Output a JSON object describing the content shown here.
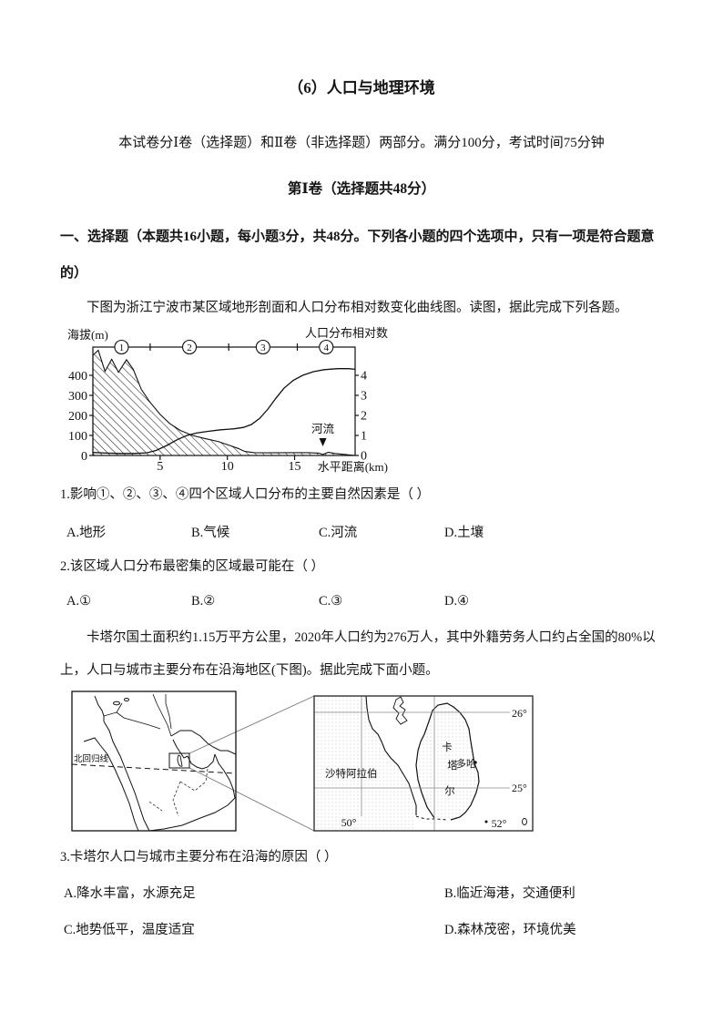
{
  "page": {
    "title": "（6）人口与地理环境",
    "exam_info": "本试卷分Ⅰ卷（选择题）和Ⅱ卷（非选择题）两部分。满分100分，考试时间75分钟",
    "part1_heading": "第Ⅰ卷（选择题共48分）",
    "section_heading": "一、选择题（本题共16小题，每小题3分，共48分。下列各小题的四个选项中，只有一项是符合题意的）",
    "intro1": "下图为浙江宁波市某区域地形剖面和人口分布相对数变化曲线图。读图，据此完成下列各题。",
    "intro2": "卡塔尔国土面积约1.15万平方公里，2020年人口约为276万人，其中外籍劳务人口约占全国的80%以上，人口与城市主要分布在沿海地区(下图)。据此完成下面小题。"
  },
  "questions": [
    {
      "text": "1.影响①、②、③、④四个区域人口分布的主要自然因素是（  ）",
      "options": [
        "A.地形",
        "B.气候",
        "C.河流",
        "D.土壤"
      ]
    },
    {
      "text": "2.该区域人口分布最密集的区域最可能在（  ）",
      "options": [
        "A.①",
        "B.②",
        "C.③",
        "D.④"
      ]
    },
    {
      "text": "3.卡塔尔人口与城市主要分布在沿海的原因（  ）",
      "options": [
        "A.降水丰富，水源充足",
        "B.临近海港，交通便利",
        "C.地势低平，温度适宜",
        "D.森林茂密，环境优美"
      ]
    }
  ],
  "chart_data": {
    "type": "line",
    "left_axis": {
      "label": "海拔(m)",
      "ticks": [
        0,
        100,
        200,
        300,
        400
      ],
      "max": 541
    },
    "right_axis": {
      "label": "人口分布相对数",
      "ticks": [
        0,
        1,
        2,
        3,
        4
      ]
    },
    "x_axis": {
      "label": "水平距离(km)",
      "ticks": [
        5,
        10,
        15
      ],
      "max": 19.5
    },
    "regions": {
      "labels": [
        "1",
        "2",
        "3",
        "4"
      ],
      "boundaries_km": [
        4.26,
        10.1,
        15.2
      ]
    },
    "annotation": {
      "label": "河流",
      "x_km": 17.1
    },
    "terrain_profile_m": [
      [
        0,
        500
      ],
      [
        0.4,
        525
      ],
      [
        0.9,
        420
      ],
      [
        1.4,
        480
      ],
      [
        1.9,
        415
      ],
      [
        2.5,
        478
      ],
      [
        3,
        430
      ],
      [
        3.6,
        330
      ],
      [
        4.2,
        270
      ],
      [
        5,
        205
      ],
      [
        5.7,
        160
      ],
      [
        6.5,
        125
      ],
      [
        7.4,
        100
      ],
      [
        8.3,
        85
      ],
      [
        9.3,
        70
      ],
      [
        10.1,
        52
      ],
      [
        10.8,
        35
      ],
      [
        11.3,
        20
      ],
      [
        12,
        14
      ],
      [
        13,
        13
      ],
      [
        14.5,
        14
      ],
      [
        16,
        14
      ],
      [
        16.8,
        12
      ],
      [
        17.1,
        5
      ],
      [
        17.5,
        16
      ],
      [
        18,
        10
      ],
      [
        18.6,
        6
      ],
      [
        19.2,
        2
      ],
      [
        19.5,
        0
      ]
    ],
    "population_curve": [
      [
        0,
        0.15
      ],
      [
        1,
        0.12
      ],
      [
        2,
        0.1
      ],
      [
        3,
        0.1
      ],
      [
        4,
        0.13
      ],
      [
        4.7,
        0.25
      ],
      [
        5.5,
        0.5
      ],
      [
        6.3,
        0.8
      ],
      [
        7,
        1
      ],
      [
        7.7,
        1.12
      ],
      [
        8.5,
        1.2
      ],
      [
        9.5,
        1.28
      ],
      [
        10.5,
        1.33
      ],
      [
        11.2,
        1.4
      ],
      [
        11.8,
        1.55
      ],
      [
        12.4,
        1.85
      ],
      [
        13,
        2.3
      ],
      [
        13.6,
        2.85
      ],
      [
        14.2,
        3.35
      ],
      [
        14.9,
        3.75
      ],
      [
        15.6,
        4
      ],
      [
        16.4,
        4.18
      ],
      [
        17.2,
        4.28
      ],
      [
        18.2,
        4.33
      ],
      [
        19,
        4.33
      ],
      [
        19.5,
        4.3
      ]
    ]
  },
  "maps": {
    "overview_map": {
      "tropic_line_label": "北回归线"
    },
    "detail_map": {
      "country_left": "沙特阿拉伯",
      "country_right_chars": [
        "卡",
        "塔",
        "尔"
      ],
      "capital": "多哈",
      "lat_labels": [
        "26°",
        "25°"
      ],
      "lon_labels": [
        "50°",
        "52°"
      ]
    }
  }
}
